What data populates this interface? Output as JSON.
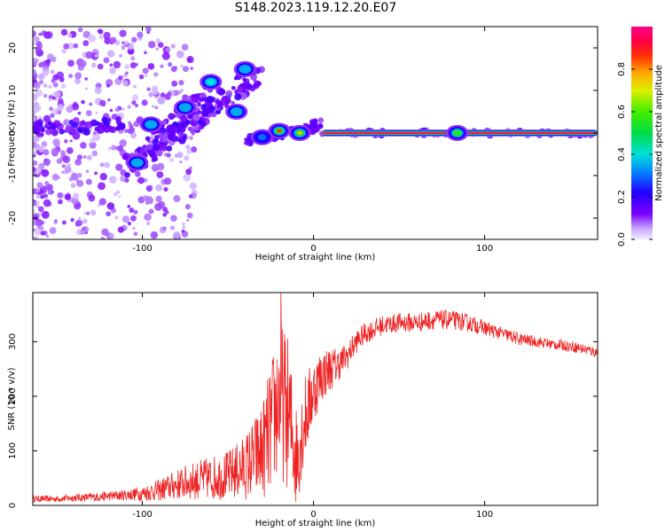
{
  "title": "S148.2023.119.12.20.E07",
  "colors": {
    "snr_line": "#ee2222",
    "frame": "#000000",
    "background": "#ffffff"
  },
  "chart_data": [
    {
      "type": "heatmap",
      "title": "S148.2023.119.12.20.E07",
      "xlabel": "Height of straight line (km)",
      "ylabel": "Frequency (Hz)",
      "xlim": [
        -164,
        166
      ],
      "ylim": [
        -25,
        25
      ],
      "xticks": [
        -100,
        0,
        100
      ],
      "yticks": [
        -20,
        -10,
        0,
        10,
        20
      ],
      "colorbar": {
        "label": "Normalized spectral amplitude",
        "range": [
          0,
          1
        ],
        "ticks": [
          "0.0",
          "0.2",
          "0.4",
          "0.6",
          "0.8"
        ],
        "colormap": "rainbow (purple → blue → cyan → green → yellow → orange → red → magenta)"
      },
      "features": [
        {
          "label": "carrier line",
          "x_range": [
            5,
            166
          ],
          "frequency": 0,
          "amplitude": 0.9
        },
        {
          "label": "blob",
          "x": -20,
          "frequency": 0.5,
          "amplitude": 0.85
        },
        {
          "label": "blob",
          "x": -8,
          "frequency": 0,
          "amplitude": 0.75
        },
        {
          "label": "blob",
          "x": 84,
          "frequency": 0,
          "amplitude": 0.55
        },
        {
          "label": "blob",
          "x": -40,
          "frequency": 15,
          "amplitude": 0.35
        },
        {
          "label": "blob",
          "x": -60,
          "frequency": 12,
          "amplitude": 0.4
        },
        {
          "label": "blob",
          "x": -103,
          "frequency": -7,
          "amplitude": 0.35
        },
        {
          "label": "blob",
          "x": -95,
          "frequency": 2,
          "amplitude": 0.35
        },
        {
          "label": "blob",
          "x": -75,
          "frequency": 6,
          "amplitude": 0.35
        },
        {
          "label": "blob",
          "x": -45,
          "frequency": 5,
          "amplitude": 0.35
        },
        {
          "label": "blob",
          "x": -30,
          "frequency": -1,
          "amplitude": 0.3
        }
      ]
    },
    {
      "type": "line",
      "xlabel": "Height of straight line (km)",
      "ylabel": "SNR (10 * v/v)",
      "xlim": [
        -164,
        166
      ],
      "ylim": [
        0,
        390
      ],
      "xticks": [
        -100,
        0,
        100
      ],
      "yticks": [
        0,
        100,
        200,
        300
      ],
      "series": [
        {
          "x": [
            -164,
            -150,
            -140,
            -130,
            -120,
            -110,
            -100,
            -90,
            -80,
            -70,
            -60,
            -50,
            -40,
            -30,
            -25,
            -20,
            -15,
            -10,
            -5,
            0,
            5,
            10,
            15,
            20,
            25,
            30,
            40,
            50,
            60,
            70,
            80,
            90,
            100,
            110,
            120,
            130,
            140,
            150,
            160,
            166
          ],
          "y": [
            12,
            12,
            14,
            15,
            17,
            19,
            22,
            28,
            38,
            45,
            50,
            55,
            70,
            100,
            140,
            200,
            170,
            90,
            160,
            210,
            240,
            250,
            260,
            275,
            300,
            315,
            330,
            335,
            335,
            340,
            340,
            335,
            325,
            315,
            305,
            300,
            295,
            292,
            285,
            280
          ],
          "noise_amplitude": [
            6,
            6,
            7,
            8,
            9,
            10,
            14,
            20,
            28,
            35,
            40,
            45,
            60,
            90,
            120,
            150,
            140,
            100,
            80,
            60,
            50,
            40,
            30,
            25,
            22,
            20,
            18,
            18,
            18,
            18,
            18,
            16,
            14,
            12,
            12,
            10,
            10,
            10,
            10,
            10
          ],
          "peak": {
            "x": -19,
            "y": 390
          }
        }
      ]
    }
  ]
}
